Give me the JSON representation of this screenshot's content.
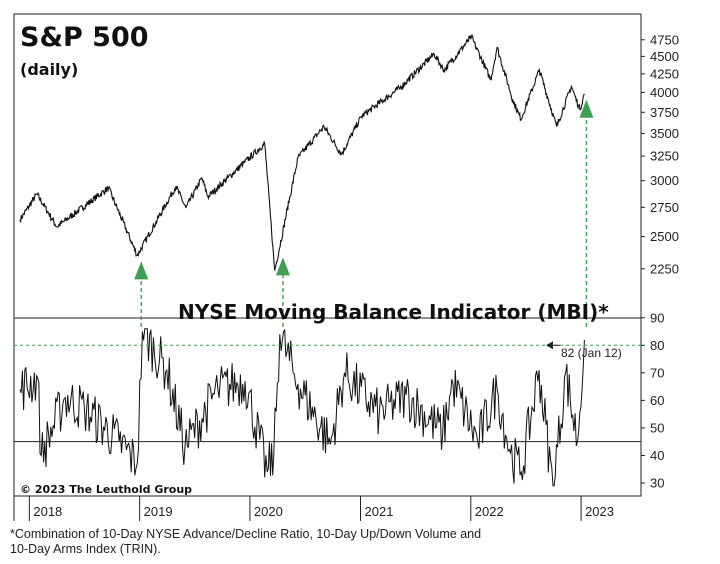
{
  "chart_data": [
    {
      "type": "line",
      "title": "S&P 500",
      "subtitle": "(daily)",
      "scale": "log",
      "ylim": [
        2100,
        5100
      ],
      "y_ticks": [
        "2250",
        "2500",
        "2750",
        "3000",
        "3250",
        "3500",
        "3750",
        "4000",
        "4250",
        "4500",
        "4750"
      ],
      "series": [
        {
          "x": [
            "2017-12-01",
            "2018-01-26",
            "2018-04-02",
            "2018-09-20",
            "2018-12-24",
            "2019-05-01",
            "2019-06-03",
            "2019-07-26",
            "2019-08-15",
            "2020-02-19",
            "2020-03-23",
            "2020-06-08",
            "2020-09-02",
            "2020-10-30",
            "2021-01-04",
            "2021-05-12",
            "2021-09-02",
            "2021-10-04",
            "2022-01-03",
            "2022-03-08",
            "2022-03-29",
            "2022-05-20",
            "2022-06-16",
            "2022-08-16",
            "2022-10-12",
            "2022-11-30",
            "2022-12-28",
            "2023-01-12"
          ],
          "y": [
            2640,
            2872,
            2581,
            2930,
            2351,
            2945,
            2744,
            3025,
            2847,
            3386,
            2237,
            3232,
            3580,
            3270,
            3700,
            4063,
            4536,
            4300,
            4796,
            4170,
            4632,
            3900,
            3666,
            4305,
            3577,
            4080,
            3783,
            3983
          ]
        }
      ],
      "arrow_dates": [
        "2018-12-24",
        "2020-04-06",
        "2023-01-12"
      ]
    },
    {
      "type": "line",
      "title": "NYSE Moving Balance Indicator (MBI)*",
      "ylim": [
        26,
        95
      ],
      "y_ticks": [
        "30",
        "40",
        "50",
        "60",
        "70",
        "80",
        "90"
      ],
      "baseline": 45,
      "threshold": 80,
      "series": [
        {
          "x": [
            "2017-12-01",
            "2018-01-29",
            "2018-02-09",
            "2018-04-30",
            "2018-07-02",
            "2018-10-25",
            "2018-12-24",
            "2019-01-10",
            "2019-04-01",
            "2019-05-31",
            "2019-09-17",
            "2019-12-16",
            "2020-02-27",
            "2020-03-20",
            "2020-04-09",
            "2020-06-08",
            "2020-09-23",
            "2020-11-09",
            "2021-03-04",
            "2021-06-01",
            "2021-09-30",
            "2021-11-03",
            "2022-01-24",
            "2022-03-29",
            "2022-05-12",
            "2022-06-17",
            "2022-08-15",
            "2022-09-30",
            "2022-11-11",
            "2022-12-20",
            "2023-01-12"
          ],
          "y": [
            64,
            68,
            40,
            61,
            57,
            45,
            37,
            85,
            71,
            43,
            64,
            67,
            34,
            40,
            84,
            66,
            44,
            70,
            55,
            62,
            48,
            66,
            45,
            64,
            41,
            34,
            71,
            28,
            70,
            45,
            82
          ]
        }
      ],
      "annotation": "82 (Jan 12)"
    }
  ],
  "x_axis": {
    "labels": [
      "2018",
      "2019",
      "2020",
      "2021",
      "2022",
      "2023"
    ]
  },
  "colors": {
    "signal_green": "#3f9e53",
    "line": "#111111"
  },
  "copyright": "© 2023 The Leuthold Group",
  "footnote": {
    "line1": "*Combination of 10-Day NYSE Advance/Decline Ratio, 10-Day Up/Down Volume and",
    "line2": "10-Day Arms Index (TRIN)."
  }
}
